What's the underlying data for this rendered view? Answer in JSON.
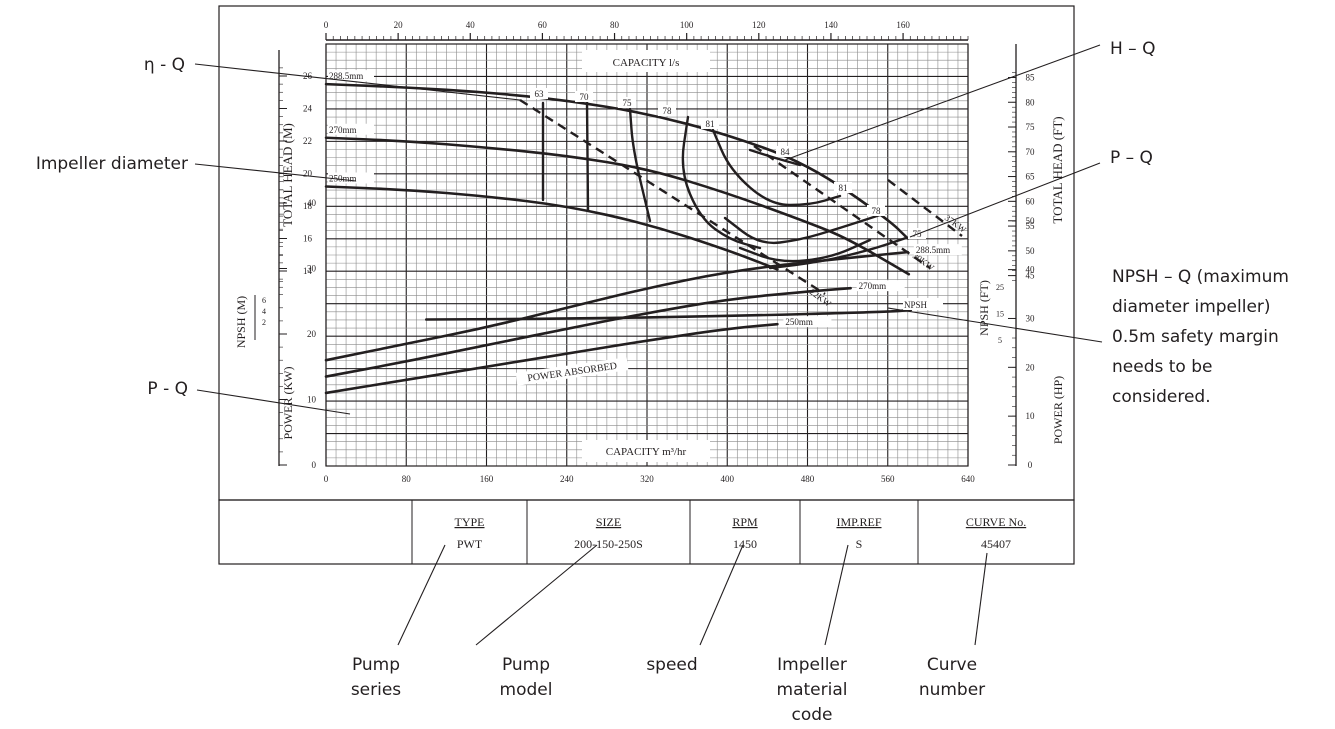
{
  "chart_data": {
    "type": "line",
    "top_axis": {
      "label": "CAPACITY  l/s",
      "ticks": [
        0,
        20,
        40,
        60,
        80,
        100,
        120,
        140,
        160
      ],
      "range": [
        0,
        178
      ]
    },
    "bottom_axis": {
      "label": "CAPACITY  m³/hr",
      "ticks": [
        0,
        80,
        160,
        240,
        320,
        400,
        480,
        560,
        640
      ],
      "range": [
        0,
        640
      ]
    },
    "head_axis": {
      "label": "TOTAL HEAD (M)",
      "ticks": [
        14,
        16,
        18,
        20,
        22,
        24,
        26
      ],
      "range": [
        12.9,
        26.7
      ]
    },
    "head_ft_axis": {
      "label": "TOTAL HEAD (FT)",
      "ticks": [
        45,
        50,
        55,
        60,
        65,
        70,
        75,
        80,
        85
      ]
    },
    "npsh_axis": {
      "label": "NPSH (M)",
      "ticks": [
        2,
        4,
        6
      ]
    },
    "npsh_ft_axis": {
      "label": "NPSH (FT)",
      "ticks": [
        5,
        15,
        25
      ]
    },
    "power_axis": {
      "label": "POWER (KW)",
      "ticks": [
        0,
        10,
        20,
        30,
        40
      ],
      "range": [
        0,
        46
      ]
    },
    "power_hp_axis": {
      "label": "POWER (HP)",
      "ticks": [
        0,
        10,
        20,
        30,
        40,
        50
      ]
    },
    "hq_series": [
      {
        "name": "288.5mm",
        "x": [
          0,
          80,
          160,
          240,
          320,
          400,
          480,
          560,
          580
        ],
        "y": [
          25.5,
          25.3,
          25.0,
          24.5,
          23.7,
          22.4,
          20.6,
          17.2,
          16.0
        ]
      },
      {
        "name": "270mm",
        "x": [
          0,
          80,
          160,
          240,
          320,
          400,
          480,
          520,
          581
        ],
        "y": [
          22.2,
          22.0,
          21.6,
          21.1,
          20.3,
          18.8,
          17.0,
          16.0,
          13.8
        ]
      },
      {
        "name": "250mm",
        "x": [
          0,
          80,
          160,
          240,
          320,
          400,
          450
        ],
        "y": [
          19.2,
          19.0,
          18.6,
          18.0,
          16.9,
          15.3,
          14.1
        ]
      }
    ],
    "efficiency_labels": [
      "63",
      "70",
      "75",
      "78",
      "81",
      "84",
      "81",
      "78",
      "75"
    ],
    "power_lines": [
      "37KW",
      "30KW",
      "22KW"
    ],
    "npsh_curve": {
      "name": "NPSH",
      "x": [
        100,
        240,
        400,
        560,
        583
      ],
      "y": [
        2.5,
        2.7,
        3.4,
        4.5,
        5.0
      ]
    },
    "pq_series": [
      {
        "name": "288.5mm",
        "x": [
          0,
          80,
          160,
          240,
          320,
          400,
          480,
          580
        ],
        "y": [
          16.0,
          18.5,
          21.0,
          24.0,
          27.0,
          29.5,
          31.0,
          32.5
        ]
      },
      {
        "name": "270mm",
        "x": [
          0,
          80,
          160,
          240,
          320,
          400,
          480,
          523
        ],
        "y": [
          13.5,
          15.8,
          18.3,
          20.8,
          23.2,
          25.3,
          26.5,
          27.0
        ]
      },
      {
        "name": "250mm",
        "x": [
          0,
          80,
          160,
          240,
          320,
          400,
          450
        ],
        "y": [
          11.0,
          13.0,
          15.0,
          17.0,
          19.0,
          20.8,
          21.5
        ]
      }
    ],
    "power_absorbed_label": "POWER ABSORBED",
    "npsh_label": "NPSH"
  },
  "info_table": {
    "columns": [
      {
        "header": "TYPE",
        "value": "PWT"
      },
      {
        "header": "SIZE",
        "value": "200-150-250S"
      },
      {
        "header": "RPM",
        "value": "1450"
      },
      {
        "header": "IMP.REF",
        "value": "S"
      },
      {
        "header": "CURVE No.",
        "value": "45407"
      }
    ]
  },
  "annotations": {
    "eta_q": "η - Q",
    "h_q": "H – Q",
    "impeller_diameter": "Impeller diameter",
    "p_q_right": "P – Q",
    "npsh_q_lines": [
      "NPSH – Q (maximum",
      "diameter impeller)",
      "0.5m safety margin",
      "needs to be",
      "considered."
    ],
    "p_q_left": "P - Q",
    "bottom": [
      {
        "lines": [
          "Pump",
          "series"
        ]
      },
      {
        "lines": [
          "Pump",
          "model"
        ]
      },
      {
        "lines": [
          "speed"
        ]
      },
      {
        "lines": [
          "Impeller",
          "material",
          "code"
        ]
      },
      {
        "lines": [
          "Curve",
          "number"
        ]
      }
    ]
  }
}
